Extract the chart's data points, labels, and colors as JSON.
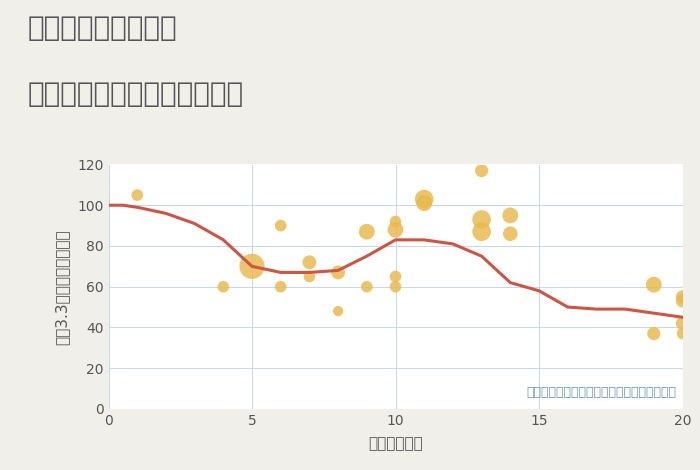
{
  "title_line1": "千葉県市原市栢橋の",
  "title_line2": "駅距離別中古マンション価格",
  "xlabel": "駅距離（分）",
  "ylabel": "坪（3.3㎡）単価（万円）",
  "background_color": "#f0efea",
  "plot_bg_color": "#ffffff",
  "grid_color": "#c5d8e8",
  "annotation": "円の大きさは、取引のあった物件面積を示す",
  "annotation_color": "#6699bb",
  "xlim": [
    0,
    20
  ],
  "ylim": [
    0,
    120
  ],
  "xticks": [
    0,
    5,
    10,
    15,
    20
  ],
  "yticks": [
    0,
    20,
    40,
    60,
    80,
    100,
    120
  ],
  "line_x": [
    0,
    0.5,
    1,
    2,
    3,
    4,
    5,
    6,
    7,
    8,
    9,
    10,
    11,
    12,
    13,
    14,
    15,
    16,
    17,
    18,
    19,
    20
  ],
  "line_y": [
    100,
    100,
    99,
    96,
    91,
    83,
    70,
    67,
    67,
    68,
    75,
    83,
    83,
    81,
    75,
    62,
    58,
    50,
    49,
    49,
    47,
    45
  ],
  "line_color": "#cc5544",
  "line_width": 2.2,
  "scatter_x": [
    1,
    4,
    5,
    6,
    6,
    7,
    7,
    8,
    8,
    9,
    9,
    10,
    10,
    10,
    10,
    11,
    11,
    13,
    13,
    13,
    14,
    14,
    19,
    19,
    20,
    20,
    20,
    20
  ],
  "scatter_y": [
    105,
    60,
    70,
    90,
    60,
    72,
    65,
    48,
    67,
    87,
    60,
    92,
    88,
    65,
    60,
    103,
    101,
    117,
    93,
    87,
    95,
    86,
    61,
    37,
    55,
    53,
    42,
    37
  ],
  "scatter_sizes": [
    70,
    70,
    330,
    70,
    70,
    100,
    70,
    55,
    100,
    130,
    70,
    70,
    130,
    70,
    70,
    180,
    130,
    90,
    180,
    180,
    130,
    110,
    130,
    90,
    90,
    90,
    90,
    70
  ],
  "scatter_color": "#e8b84b",
  "scatter_alpha": 0.82,
  "title_color": "#555555",
  "title_fontsize": 20,
  "axis_label_color": "#555555",
  "axis_fontsize": 11,
  "tick_fontsize": 10,
  "annotation_fontsize": 9
}
